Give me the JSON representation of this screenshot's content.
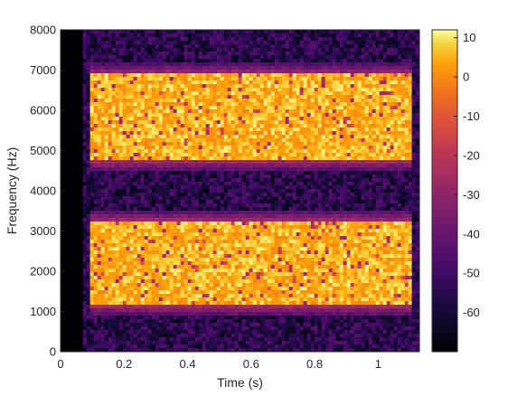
{
  "chart_data": {
    "type": "heatmap",
    "title": "",
    "xlabel": "Time (s)",
    "ylabel": "Frequency (Hz)",
    "xlim": [
      0,
      1.13
    ],
    "ylim": [
      0,
      8000
    ],
    "x_ticks": [
      0,
      0.2,
      0.4,
      0.6,
      0.8,
      1
    ],
    "x_tick_labels": [
      "0",
      "0.2",
      "0.4",
      "0.6",
      "0.8",
      "1"
    ],
    "y_ticks": [
      0,
      1000,
      2000,
      3000,
      4000,
      5000,
      6000,
      7000,
      8000
    ],
    "y_tick_labels": [
      "0",
      "1000",
      "2000",
      "3000",
      "4000",
      "5000",
      "6000",
      "7000",
      "8000"
    ],
    "colorbar": {
      "range": [
        -70,
        12
      ],
      "ticks": [
        10,
        0,
        -10,
        -20,
        -30,
        -40,
        -50,
        -60
      ],
      "tick_labels": [
        "10",
        "0",
        "-10",
        "-20",
        "-30",
        "-40",
        "-50",
        "-60"
      ],
      "colormap": "inferno"
    },
    "signal_start_s": 0.07,
    "background_level_db": -55,
    "bands": [
      {
        "t_start": 0.09,
        "t_end": 1.11,
        "f_low": 1150,
        "f_high": 3250,
        "level_db": 5
      },
      {
        "t_start": 0.09,
        "t_end": 1.11,
        "f_low": 4750,
        "f_high": 6900,
        "level_db": 5
      }
    ],
    "colors": {
      "axis": "#262626",
      "background": "#ffffff"
    }
  }
}
